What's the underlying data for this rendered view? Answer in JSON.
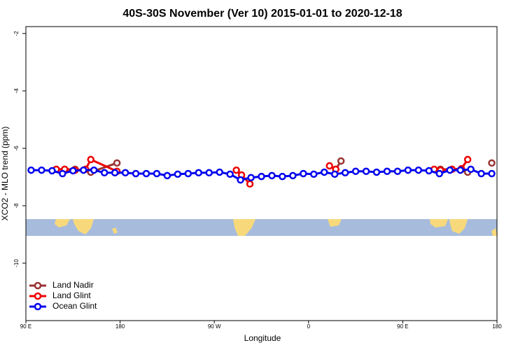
{
  "chart_data": {
    "type": "line",
    "title": "40S-30S November (Ver 10)   2015-01-01 to 2020-12-18",
    "x_label": "Longitude",
    "y_label": "XCO2 - MLO trend (ppm)",
    "xlim": [
      90,
      540
    ],
    "xticks": [
      {
        "value": 90,
        "label": "90 E"
      },
      180,
      {
        "value": 270,
        "label": "90 W"
      },
      {
        "value": 360,
        "label": "0"
      },
      {
        "value": 450,
        "label": "90 E"
      },
      {
        "value": 540,
        "label": "180"
      }
    ],
    "ylim": [
      -12,
      -1.76
    ],
    "yticks": [
      -2,
      -4,
      -6,
      -8,
      -10
    ],
    "legend": "bottom-left",
    "series": [
      {
        "name": "Land Nadir",
        "color": "#993333",
        "x": [
          119,
          127,
          137,
          152,
          177,
          250,
          386,
          391,
          440,
          486,
          497,
          512,
          525,
          535
        ],
        "values": [
          -6.73,
          -6.73,
          -6.73,
          -6.83,
          -6.51,
          null,
          -6.73,
          -6.44,
          null,
          -6.73,
          -6.73,
          -6.83,
          null,
          -6.51
        ]
      },
      {
        "name": "Land Glint",
        "color": "#ee0000",
        "x": [
          119,
          127,
          137,
          147,
          152,
          177,
          250,
          291,
          296,
          304,
          340,
          380,
          386,
          440,
          480,
          486,
          497,
          506,
          512
        ],
        "values": [
          -6.73,
          -6.73,
          -6.76,
          -6.73,
          -6.39,
          -6.8,
          null,
          -6.76,
          -6.93,
          -7.24,
          null,
          -6.61,
          -6.73,
          null,
          -6.73,
          -6.76,
          -6.73,
          -6.71,
          -6.39
        ]
      },
      {
        "name": "Ocean Glint",
        "color": "#0000ee",
        "x": [
          95,
          105,
          115,
          125,
          135,
          145,
          155,
          165,
          175,
          185,
          195,
          205,
          215,
          225,
          235,
          245,
          255,
          265,
          275,
          285,
          295,
          305,
          315,
          325,
          335,
          345,
          355,
          365,
          375,
          385,
          395,
          405,
          415,
          425,
          435,
          445,
          455,
          465,
          475,
          485,
          495,
          505,
          515,
          525,
          535
        ],
        "values": [
          -6.76,
          -6.76,
          -6.78,
          -6.88,
          -6.78,
          -6.76,
          -6.76,
          -6.85,
          -6.85,
          -6.85,
          -6.88,
          -6.88,
          -6.88,
          -6.95,
          -6.9,
          -6.88,
          -6.85,
          -6.85,
          -6.83,
          -6.9,
          -7.1,
          -7.02,
          -6.98,
          -6.95,
          -6.98,
          -6.95,
          -6.88,
          -6.9,
          -6.83,
          -6.9,
          -6.85,
          -6.8,
          -6.8,
          -6.83,
          -6.8,
          -6.8,
          -6.76,
          -6.76,
          -6.78,
          -6.88,
          -6.76,
          -6.76,
          -6.73,
          -6.88,
          -6.88
        ]
      }
    ]
  }
}
